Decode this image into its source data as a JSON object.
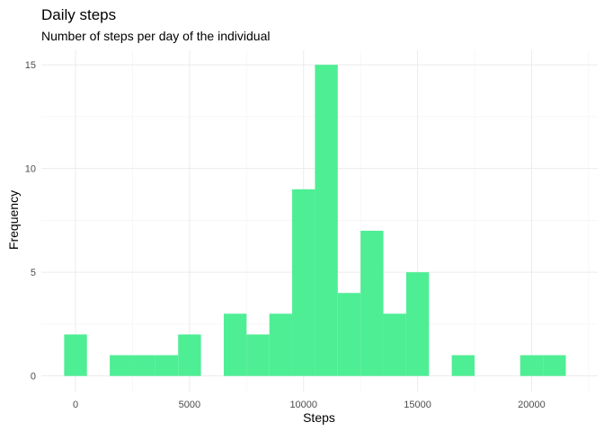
{
  "chart_data": {
    "type": "bar",
    "title": "Daily steps",
    "subtitle": "Number of steps per day of the individual",
    "xlabel": "Steps",
    "ylabel": "Frequency",
    "bin_width": 1000,
    "bins": [
      {
        "x": 0,
        "count": 2
      },
      {
        "x": 2000,
        "count": 1
      },
      {
        "x": 3000,
        "count": 1
      },
      {
        "x": 4000,
        "count": 1
      },
      {
        "x": 5000,
        "count": 2
      },
      {
        "x": 7000,
        "count": 3
      },
      {
        "x": 8000,
        "count": 2
      },
      {
        "x": 9000,
        "count": 3
      },
      {
        "x": 10000,
        "count": 9
      },
      {
        "x": 11000,
        "count": 15
      },
      {
        "x": 12000,
        "count": 4
      },
      {
        "x": 13000,
        "count": 7
      },
      {
        "x": 14000,
        "count": 3
      },
      {
        "x": 15000,
        "count": 5
      },
      {
        "x": 17000,
        "count": 1
      },
      {
        "x": 20000,
        "count": 1
      },
      {
        "x": 21000,
        "count": 1
      }
    ],
    "xlim": [
      -1500,
      22900
    ],
    "ylim": [
      -0.75,
      15.7
    ],
    "x_ticks": [
      0,
      5000,
      10000,
      15000,
      20000
    ],
    "x_tick_labels": [
      "0",
      "5000",
      "10000",
      "15000",
      "20000"
    ],
    "y_ticks": [
      0,
      5,
      10,
      15
    ],
    "y_tick_labels": [
      "0",
      "5",
      "10",
      "15"
    ],
    "grid": true,
    "bar_color": "#4eee94",
    "legend": "none"
  }
}
